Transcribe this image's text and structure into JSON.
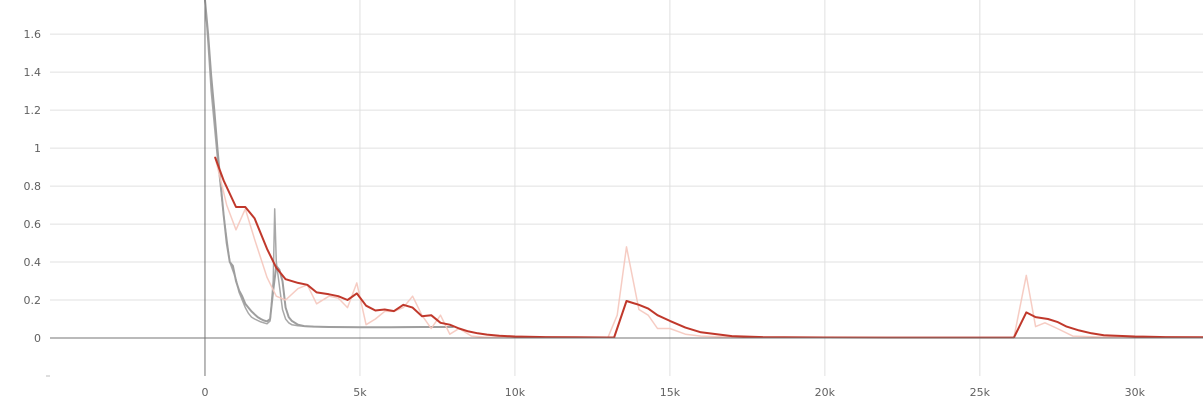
{
  "chart_data": {
    "type": "line",
    "title": "",
    "xlabel": "",
    "ylabel": "",
    "xlim": [
      -5000,
      32200
    ],
    "ylim": [
      -0.2,
      1.78
    ],
    "grid": true,
    "legend": "none",
    "x_ticks": [
      {
        "value": 0,
        "label": "0"
      },
      {
        "value": 5000,
        "label": "5k"
      },
      {
        "value": 10000,
        "label": "10k"
      },
      {
        "value": 15000,
        "label": "15k"
      },
      {
        "value": 20000,
        "label": "20k"
      },
      {
        "value": 25000,
        "label": "25k"
      },
      {
        "value": 30000,
        "label": "30k"
      }
    ],
    "y_ticks": [
      {
        "value": 0,
        "label": "0"
      },
      {
        "value": 0.2,
        "label": "0.2"
      },
      {
        "value": 0.4,
        "label": "0.4"
      },
      {
        "value": 0.6,
        "label": "0.6"
      },
      {
        "value": 0.8,
        "label": "0.8"
      },
      {
        "value": 1,
        "label": "1"
      },
      {
        "value": 1.2,
        "label": "1.2"
      },
      {
        "value": 1.4,
        "label": "1.4"
      },
      {
        "value": 1.6,
        "label": "1.6"
      }
    ],
    "series": [
      {
        "color": "#9e9e9e",
        "style": "raw",
        "x": [
          0,
          100,
          200,
          400,
          600,
          800,
          1000,
          1100,
          1200,
          1300,
          1400,
          1500,
          1600,
          1800,
          2000,
          2100,
          2200,
          2250,
          2300,
          2500,
          2600,
          2700,
          2800,
          3000,
          3200,
          3500,
          4000,
          5000,
          6000,
          7000,
          8000
        ],
        "y": [
          1.78,
          1.55,
          1.3,
          0.95,
          0.65,
          0.4,
          0.31,
          0.24,
          0.2,
          0.16,
          0.13,
          0.11,
          0.1,
          0.085,
          0.075,
          0.09,
          0.3,
          0.68,
          0.4,
          0.15,
          0.1,
          0.08,
          0.07,
          0.065,
          0.062,
          0.06,
          0.058,
          0.057,
          0.057,
          0.058,
          0.058
        ]
      },
      {
        "color": "#9e9e9e",
        "style": "smoothed",
        "x": [
          0,
          100,
          200,
          300,
          400,
          500,
          600,
          700,
          800,
          900,
          1000,
          1100,
          1200,
          1300,
          1400,
          1500,
          1600,
          1700,
          1800,
          1900,
          2000,
          2100,
          2200,
          2300,
          2400,
          2500,
          2600,
          2700,
          2800,
          3000,
          3200,
          3500,
          4000,
          5000,
          6000,
          7000,
          8000
        ],
        "y": [
          1.78,
          1.6,
          1.38,
          1.2,
          1.0,
          0.82,
          0.65,
          0.5,
          0.4,
          0.38,
          0.3,
          0.25,
          0.22,
          0.18,
          0.16,
          0.14,
          0.125,
          0.11,
          0.1,
          0.092,
          0.088,
          0.1,
          0.25,
          0.38,
          0.36,
          0.3,
          0.16,
          0.11,
          0.09,
          0.07,
          0.063,
          0.06,
          0.058,
          0.057,
          0.057,
          0.058,
          0.058
        ]
      },
      {
        "color": "#f5c6bc",
        "style": "raw",
        "x": [
          330,
          700,
          1000,
          1300,
          1600,
          2000,
          2300,
          2600,
          3000,
          3300,
          3600,
          4000,
          4300,
          4600,
          4900,
          5200,
          5500,
          5800,
          6100,
          6400,
          6700,
          7000,
          7300,
          7600,
          7900,
          8200,
          8600,
          9000,
          9500,
          10000,
          11000,
          12000,
          13000,
          13300,
          13600,
          14000,
          14300,
          14600,
          15000,
          15500,
          16000,
          17000,
          18000,
          20000,
          22000,
          24000,
          26100,
          26500,
          26800,
          27100,
          27500,
          28000,
          29000,
          30000,
          32200
        ],
        "y": [
          0.95,
          0.7,
          0.57,
          0.68,
          0.52,
          0.32,
          0.22,
          0.2,
          0.26,
          0.28,
          0.18,
          0.22,
          0.21,
          0.16,
          0.29,
          0.07,
          0.1,
          0.14,
          0.14,
          0.16,
          0.22,
          0.12,
          0.05,
          0.12,
          0.02,
          0.05,
          0.01,
          0.005,
          0.004,
          0.003,
          0.002,
          0.002,
          0.002,
          0.12,
          0.48,
          0.15,
          0.12,
          0.05,
          0.05,
          0.02,
          0.01,
          0.005,
          0.003,
          0.002,
          0.002,
          0.002,
          0.003,
          0.33,
          0.06,
          0.08,
          0.05,
          0.01,
          0.005,
          0.003,
          0.002
        ]
      },
      {
        "color": "#c0382b",
        "style": "smoothed",
        "x": [
          330,
          600,
          1000,
          1300,
          1600,
          2000,
          2300,
          2600,
          3000,
          3300,
          3600,
          4000,
          4300,
          4600,
          4900,
          5200,
          5500,
          5800,
          6100,
          6400,
          6700,
          7000,
          7300,
          7600,
          7900,
          8200,
          8500,
          8800,
          9100,
          9500,
          10000,
          11000,
          12000,
          13000,
          13200,
          13600,
          14000,
          14300,
          14600,
          15000,
          15500,
          16000,
          17000,
          18000,
          20000,
          22000,
          24000,
          26100,
          26500,
          26800,
          27200,
          27500,
          27800,
          28200,
          28600,
          29000,
          30000,
          31000,
          32200
        ],
        "y": [
          0.95,
          0.83,
          0.69,
          0.69,
          0.63,
          0.47,
          0.37,
          0.31,
          0.29,
          0.28,
          0.24,
          0.23,
          0.22,
          0.2,
          0.235,
          0.17,
          0.145,
          0.15,
          0.142,
          0.175,
          0.16,
          0.115,
          0.12,
          0.08,
          0.07,
          0.05,
          0.035,
          0.025,
          0.018,
          0.012,
          0.008,
          0.005,
          0.004,
          0.003,
          0.003,
          0.195,
          0.175,
          0.155,
          0.12,
          0.09,
          0.055,
          0.03,
          0.01,
          0.005,
          0.003,
          0.002,
          0.002,
          0.002,
          0.135,
          0.11,
          0.1,
          0.085,
          0.06,
          0.04,
          0.025,
          0.015,
          0.008,
          0.005,
          0.004
        ]
      }
    ]
  }
}
